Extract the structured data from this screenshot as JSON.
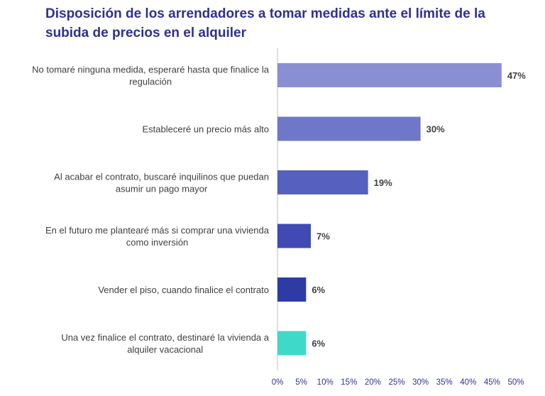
{
  "title_lines": [
    "Disposición de los arrendadores a tomar medidas ante el límite de la",
    "subida de precios en el alquiler"
  ],
  "chart_data": {
    "type": "bar",
    "orientation": "horizontal",
    "title": "Disposición de los arrendadores a tomar medidas ante el límite de la subida de precios en el alquiler",
    "categories": [
      [
        "No tomaré ninguna medida, esperaré hasta que finalice la",
        "regulación"
      ],
      [
        "Estableceré un precio más alto"
      ],
      [
        "Al acabar el contrato, buscaré inquilinos que puedan",
        "asumir un pago mayor"
      ],
      [
        "En el futuro me plantearé más si comprar una vivienda",
        "como inversión"
      ],
      [
        "Vender el piso, cuando finalice el contrato"
      ],
      [
        "Una vez finalice el contrato, destinaré la vivienda a",
        "alquiler vacacional"
      ]
    ],
    "values": [
      47,
      30,
      19,
      7,
      6,
      6
    ],
    "value_labels": [
      "47%",
      "30%",
      "19%",
      "7%",
      "6%",
      "6%"
    ],
    "bar_colors": [
      "#8a8fd4",
      "#6f77c9",
      "#5661bf",
      "#4149b4",
      "#2e3aa6",
      "#3fd9c9"
    ],
    "xlim": [
      0,
      50
    ],
    "xticks": [
      0,
      5,
      10,
      15,
      20,
      25,
      30,
      35,
      40,
      45,
      50
    ],
    "xtick_labels": [
      "0%",
      "5%",
      "10%",
      "15%",
      "20%",
      "25%",
      "30%",
      "35%",
      "40%",
      "45%",
      "50%"
    ],
    "xlabel": "",
    "ylabel": "",
    "legend": "none",
    "grid": false
  }
}
